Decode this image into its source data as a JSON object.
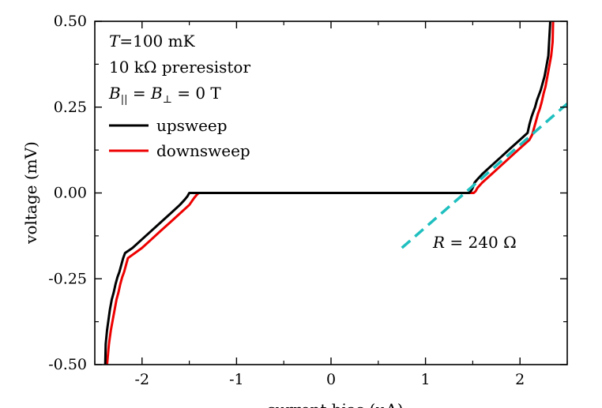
{
  "chart_data": {
    "type": "line",
    "xlabel": "current bias (μA)",
    "ylabel": "voltage (mV)",
    "xlim": [
      -2.5,
      2.5
    ],
    "ylim": [
      -0.5,
      0.5
    ],
    "x_ticks": [
      -2,
      -1,
      0,
      1,
      2
    ],
    "x_tick_labels": [
      "-2",
      "-1",
      "0",
      "1",
      "2"
    ],
    "y_ticks": [
      -0.5,
      -0.25,
      0.0,
      0.25,
      0.5
    ],
    "y_tick_labels": [
      "-0.50",
      "-0.25",
      "0.00",
      "0.25",
      "0.50"
    ],
    "grid": false,
    "legend_position": "upper-left",
    "annotations": {
      "temperature": {
        "symbol": "T",
        "text": "=100 mK"
      },
      "preresistor": "10 kΩ preresistor",
      "field": {
        "pre": "B",
        "sub1": "||",
        "mid": " = B",
        "sub2": "⊥",
        "post": " = 0 T"
      },
      "resistance": {
        "symbol": "R",
        "text": " = 240 Ω"
      }
    },
    "series": [
      {
        "name": "upsweep",
        "color": "#000000",
        "x": [
          -2.39,
          -2.385,
          -2.37,
          -2.355,
          -2.34,
          -2.32,
          -2.3,
          -2.28,
          -2.26,
          -2.24,
          -2.22,
          -2.2,
          -2.18,
          -2.1,
          -2.0,
          -1.9,
          -1.8,
          -1.7,
          -1.6,
          -1.55,
          -1.52,
          -1.5,
          -1.45,
          -1.4,
          -1.0,
          0.0,
          1.0,
          1.46,
          1.48,
          1.5,
          1.52,
          1.55,
          1.6,
          1.7,
          1.8,
          1.9,
          2.0,
          2.08,
          2.1,
          2.12,
          2.14,
          2.16,
          2.18,
          2.2,
          2.22,
          2.24,
          2.26,
          2.28,
          2.3,
          2.31,
          2.32
        ],
        "y": [
          -0.5,
          -0.44,
          -0.4,
          -0.37,
          -0.34,
          -0.31,
          -0.29,
          -0.265,
          -0.245,
          -0.23,
          -0.21,
          -0.19,
          -0.175,
          -0.16,
          -0.135,
          -0.11,
          -0.085,
          -0.06,
          -0.035,
          -0.02,
          -0.01,
          0.0,
          0.0,
          0.0,
          0.0,
          0.0,
          0.0,
          0.0,
          0.005,
          0.015,
          0.03,
          0.04,
          0.055,
          0.08,
          0.105,
          0.13,
          0.155,
          0.175,
          0.2,
          0.22,
          0.235,
          0.25,
          0.27,
          0.285,
          0.3,
          0.32,
          0.34,
          0.37,
          0.4,
          0.45,
          0.5
        ]
      },
      {
        "name": "downsweep",
        "color": "#ee0000",
        "x": [
          2.35,
          2.345,
          2.33,
          2.31,
          2.29,
          2.27,
          2.25,
          2.23,
          2.21,
          2.19,
          2.17,
          2.15,
          2.13,
          2.1,
          2.0,
          1.9,
          1.8,
          1.7,
          1.6,
          1.55,
          1.53,
          1.51,
          1.5,
          1.0,
          0.0,
          -1.0,
          -1.4,
          -1.42,
          -1.45,
          -1.5,
          -1.6,
          -1.7,
          -1.8,
          -1.9,
          -2.0,
          -2.1,
          -2.15,
          -2.17,
          -2.19,
          -2.21,
          -2.23,
          -2.25,
          -2.27,
          -2.29,
          -2.31,
          -2.33,
          -2.35,
          -2.37
        ],
        "y": [
          0.5,
          0.44,
          0.4,
          0.37,
          0.34,
          0.31,
          0.29,
          0.265,
          0.245,
          0.23,
          0.21,
          0.19,
          0.17,
          0.155,
          0.13,
          0.105,
          0.08,
          0.055,
          0.03,
          0.015,
          0.005,
          0.0,
          0.0,
          0.0,
          0.0,
          0.0,
          0.0,
          -0.005,
          -0.015,
          -0.035,
          -0.06,
          -0.085,
          -0.11,
          -0.135,
          -0.16,
          -0.18,
          -0.19,
          -0.21,
          -0.23,
          -0.245,
          -0.265,
          -0.29,
          -0.31,
          -0.34,
          -0.37,
          -0.4,
          -0.44,
          -0.5
        ]
      },
      {
        "role": "linear-fit",
        "color": "#1fbfbf",
        "x": [
          0.75,
          2.5
        ],
        "y": [
          -0.16,
          0.26
        ]
      }
    ]
  }
}
